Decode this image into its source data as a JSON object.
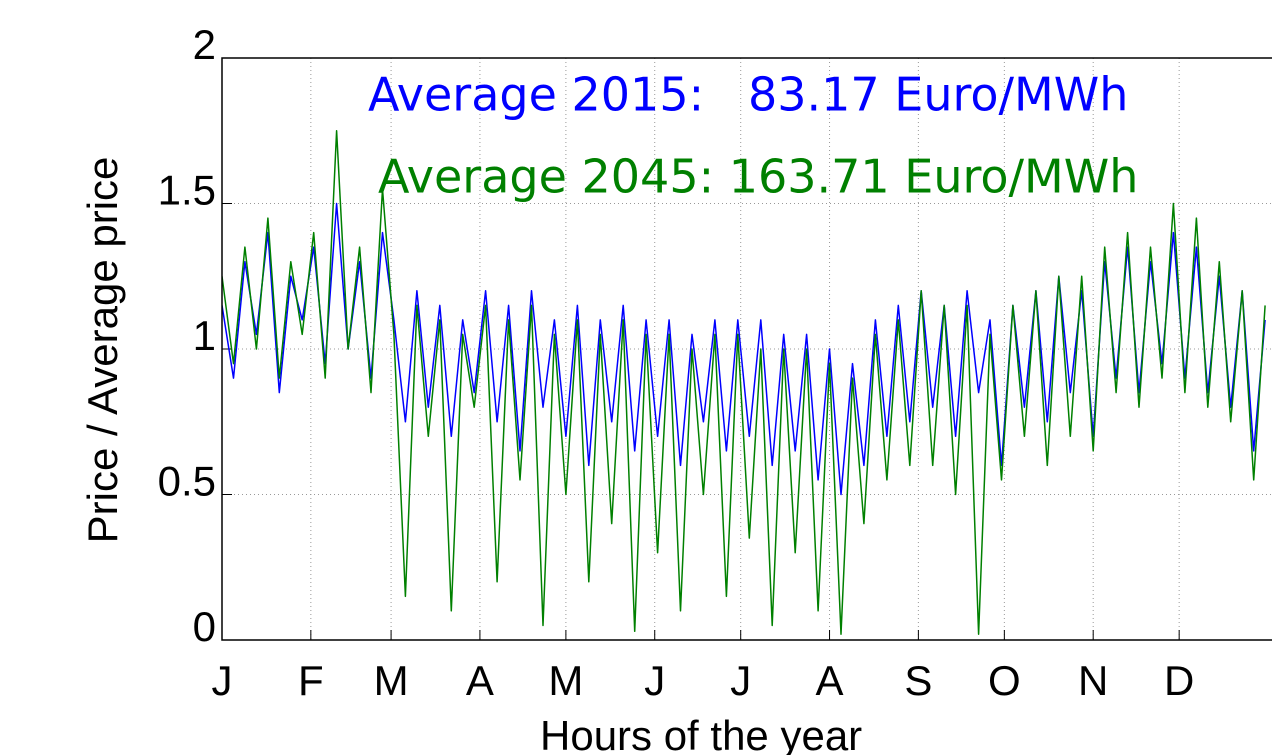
{
  "chart_data": {
    "type": "line",
    "xlabel": "Hours of the year",
    "ylabel": "Price / Average price",
    "annotations": [
      {
        "text": "Average 2015:   83.17 Euro/MWh",
        "color": "#0000ff"
      },
      {
        "text": "Average 2045: 163.71 Euro/MWh",
        "color": "#008000"
      }
    ],
    "xlim": [
      0,
      8760
    ],
    "xticks": [
      {
        "value": 0,
        "label": "J"
      },
      {
        "value": 744,
        "label": "F"
      },
      {
        "value": 1416,
        "label": "M"
      },
      {
        "value": 2160,
        "label": "A"
      },
      {
        "value": 2880,
        "label": "M"
      },
      {
        "value": 3624,
        "label": "J"
      },
      {
        "value": 4344,
        "label": "J"
      },
      {
        "value": 5088,
        "label": "A"
      },
      {
        "value": 5832,
        "label": "S"
      },
      {
        "value": 6552,
        "label": "O"
      },
      {
        "value": 7296,
        "label": "N"
      },
      {
        "value": 8016,
        "label": "D"
      }
    ],
    "ylim": [
      0,
      2
    ],
    "yticks": [
      0,
      0.5,
      1,
      1.5,
      2
    ],
    "grid": true,
    "x": [
      0,
      96,
      192,
      288,
      384,
      480,
      576,
      672,
      768,
      864,
      960,
      1056,
      1152,
      1248,
      1344,
      1440,
      1536,
      1632,
      1728,
      1824,
      1920,
      2016,
      2112,
      2208,
      2304,
      2400,
      2496,
      2592,
      2688,
      2784,
      2880,
      2976,
      3072,
      3168,
      3264,
      3360,
      3456,
      3552,
      3648,
      3744,
      3840,
      3936,
      4032,
      4128,
      4224,
      4320,
      4416,
      4512,
      4608,
      4704,
      4800,
      4896,
      4992,
      5088,
      5184,
      5280,
      5376,
      5472,
      5568,
      5664,
      5760,
      5856,
      5952,
      6048,
      6144,
      6240,
      6336,
      6432,
      6528,
      6624,
      6720,
      6816,
      6912,
      7008,
      7104,
      7200,
      7296,
      7392,
      7488,
      7584,
      7680,
      7776,
      7872,
      7968,
      8064,
      8160,
      8256,
      8352,
      8448,
      8544,
      8640,
      8736
    ],
    "series": [
      {
        "color": "#0000ff",
        "values": [
          1.15,
          0.9,
          1.3,
          1.05,
          1.4,
          0.85,
          1.25,
          1.1,
          1.35,
          0.95,
          1.5,
          1.0,
          1.3,
          0.9,
          1.4,
          1.1,
          0.75,
          1.2,
          0.8,
          1.15,
          0.7,
          1.1,
          0.85,
          1.2,
          0.75,
          1.15,
          0.65,
          1.2,
          0.8,
          1.1,
          0.7,
          1.15,
          0.6,
          1.1,
          0.75,
          1.15,
          0.65,
          1.1,
          0.7,
          1.1,
          0.6,
          1.05,
          0.75,
          1.1,
          0.65,
          1.1,
          0.7,
          1.1,
          0.6,
          1.05,
          0.65,
          1.05,
          0.55,
          1.0,
          0.5,
          0.95,
          0.6,
          1.1,
          0.7,
          1.15,
          0.75,
          1.2,
          0.8,
          1.15,
          0.7,
          1.2,
          0.85,
          1.1,
          0.6,
          1.15,
          0.8,
          1.2,
          0.75,
          1.25,
          0.85,
          1.2,
          0.7,
          1.3,
          0.9,
          1.35,
          0.85,
          1.3,
          0.95,
          1.4,
          0.9,
          1.35,
          0.85,
          1.25,
          0.8,
          1.2,
          0.65,
          1.1
        ]
      },
      {
        "color": "#008000",
        "values": [
          1.25,
          0.95,
          1.35,
          1.0,
          1.45,
          0.9,
          1.3,
          1.05,
          1.4,
          0.9,
          1.75,
          1.0,
          1.35,
          0.85,
          1.55,
          1.05,
          0.15,
          1.15,
          0.7,
          1.1,
          0.1,
          1.05,
          0.8,
          1.15,
          0.2,
          1.1,
          0.55,
          1.15,
          0.05,
          1.05,
          0.5,
          1.1,
          0.2,
          1.05,
          0.4,
          1.1,
          0.03,
          1.05,
          0.3,
          1.05,
          0.1,
          1.0,
          0.5,
          1.05,
          0.15,
          1.05,
          0.35,
          1.0,
          0.05,
          1.0,
          0.3,
          1.0,
          0.1,
          0.95,
          0.02,
          0.9,
          0.4,
          1.05,
          0.55,
          1.1,
          0.6,
          1.2,
          0.6,
          1.15,
          0.5,
          1.15,
          0.02,
          1.05,
          0.55,
          1.15,
          0.7,
          1.2,
          0.6,
          1.25,
          0.7,
          1.25,
          0.65,
          1.35,
          0.85,
          1.4,
          0.8,
          1.35,
          0.9,
          1.5,
          0.85,
          1.45,
          0.8,
          1.3,
          0.75,
          1.2,
          0.55,
          1.15
        ]
      }
    ]
  }
}
